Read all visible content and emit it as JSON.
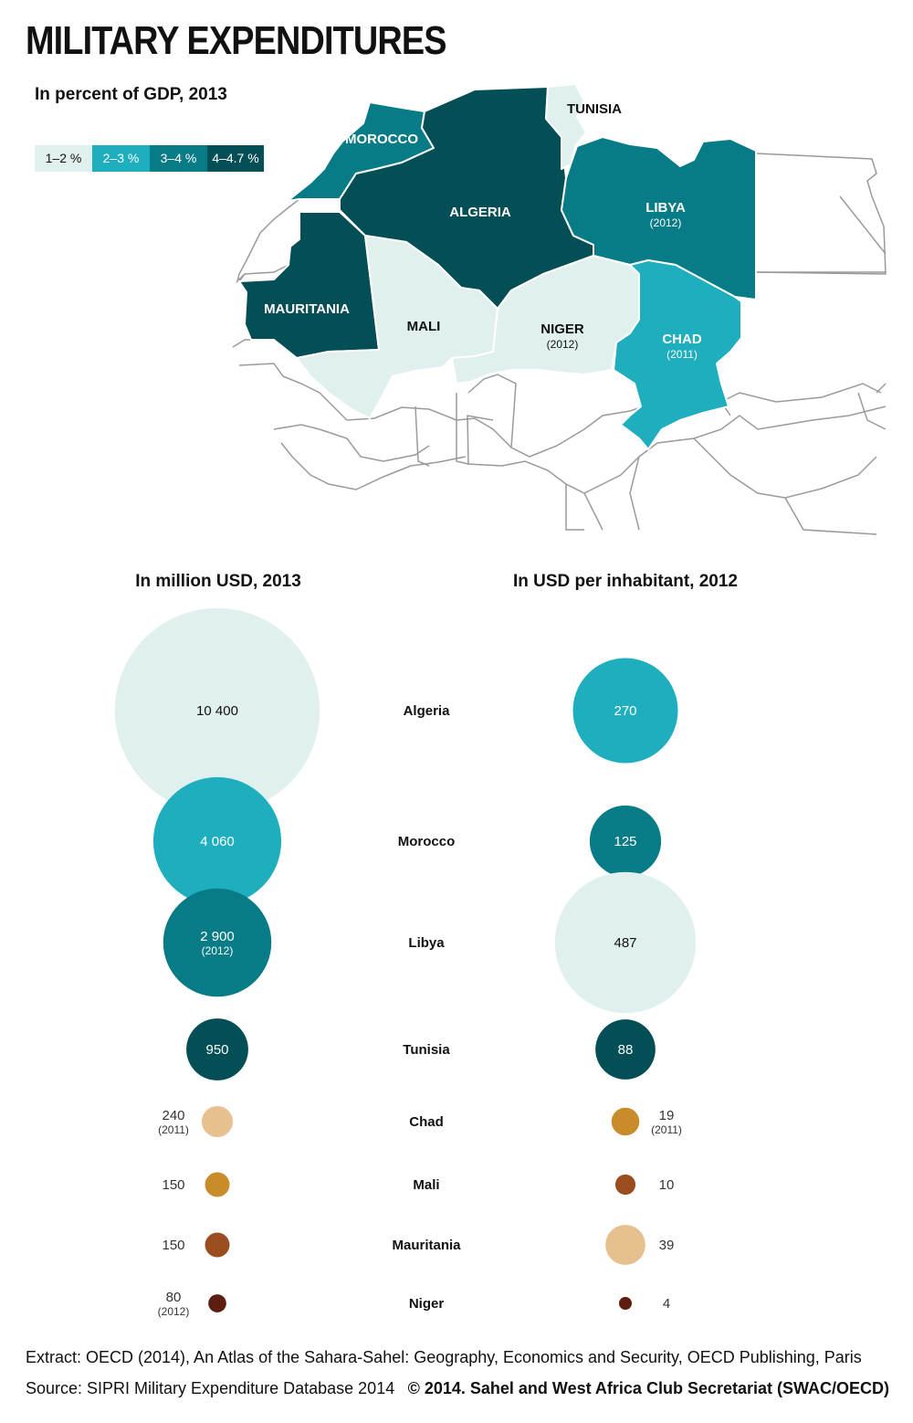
{
  "title": "MILITARY EXPENDITURES",
  "map": {
    "subtitle": "In percent of GDP, 2013",
    "legend": [
      {
        "label": "1–2 %",
        "color": "#dff0ef",
        "text_color": "#111111"
      },
      {
        "label": "2–3 %",
        "color": "#1eaebe",
        "text_color": "#ffffff"
      },
      {
        "label": "3–4 %",
        "color": "#077b86",
        "text_color": "#ffffff"
      },
      {
        "label": "4–4.7 %",
        "color": "#034f55",
        "text_color": "#ffffff"
      }
    ],
    "countries": [
      {
        "id": "morocco",
        "name": "MOROCCO",
        "note": "",
        "class": "3–4 %"
      },
      {
        "id": "algeria",
        "name": "ALGERIA",
        "note": "",
        "class": "4–4.7 %"
      },
      {
        "id": "tunisia",
        "name": "TUNISIA",
        "note": "",
        "class": "1–2 %"
      },
      {
        "id": "libya",
        "name": "LIBYA",
        "note": "(2012)",
        "class": "3–4 %"
      },
      {
        "id": "mauritania",
        "name": "MAURITANIA",
        "note": "",
        "class": "4–4.7 %"
      },
      {
        "id": "mali",
        "name": "MALI",
        "note": "",
        "class": "1–2 %"
      },
      {
        "id": "niger",
        "name": "NIGER",
        "note": "(2012)",
        "class": "1–2 %"
      },
      {
        "id": "chad",
        "name": "CHAD",
        "note": "(2011)",
        "class": "2–3 %"
      }
    ]
  },
  "chart_data": [
    {
      "type": "bubble",
      "title": "In million USD, 2013",
      "categories": [
        "Algeria",
        "Morocco",
        "Libya",
        "Tunisia",
        "Chad",
        "Mali",
        "Mauritania",
        "Niger"
      ],
      "values": [
        10400,
        4060,
        2900,
        950,
        240,
        150,
        150,
        80
      ],
      "labels": [
        "10 400",
        "4 060",
        "2 900",
        "950",
        "240",
        "150",
        "150",
        "80"
      ],
      "notes": [
        "",
        "",
        "(2012)",
        "",
        "(2011)",
        "",
        "",
        "(2012)"
      ],
      "colors": [
        "#dff0ef",
        "#1eaebe",
        "#077b86",
        "#034f55",
        "#e6c18f",
        "#c98c2a",
        "#9a4e1f",
        "#5e1e0f"
      ]
    },
    {
      "type": "bubble",
      "title": "In USD per inhabitant, 2012",
      "categories": [
        "Algeria",
        "Morocco",
        "Libya",
        "Tunisia",
        "Chad",
        "Mali",
        "Mauritania",
        "Niger"
      ],
      "values": [
        270,
        125,
        487,
        88,
        19,
        10,
        39,
        4
      ],
      "labels": [
        "270",
        "125",
        "487",
        "88",
        "19",
        "10",
        "39",
        "4"
      ],
      "notes": [
        "",
        "",
        "",
        "",
        "(2011)",
        "",
        "",
        ""
      ],
      "colors": [
        "#1eaebe",
        "#077b86",
        "#dff0ef",
        "#034f55",
        "#c98c2a",
        "#9a4e1f",
        "#e6c18f",
        "#5e1e0f"
      ]
    }
  ],
  "footer": {
    "extract": "Extract: OECD (2014), An Atlas of the Sahara-Sahel: Geography, Economics  and Security, OECD Publishing, Paris",
    "source": "Source: SIPRI Military Expenditure Database 2014",
    "copyright": "© 2014. Sahel and West Africa Club Secretariat (SWAC/OECD)"
  }
}
